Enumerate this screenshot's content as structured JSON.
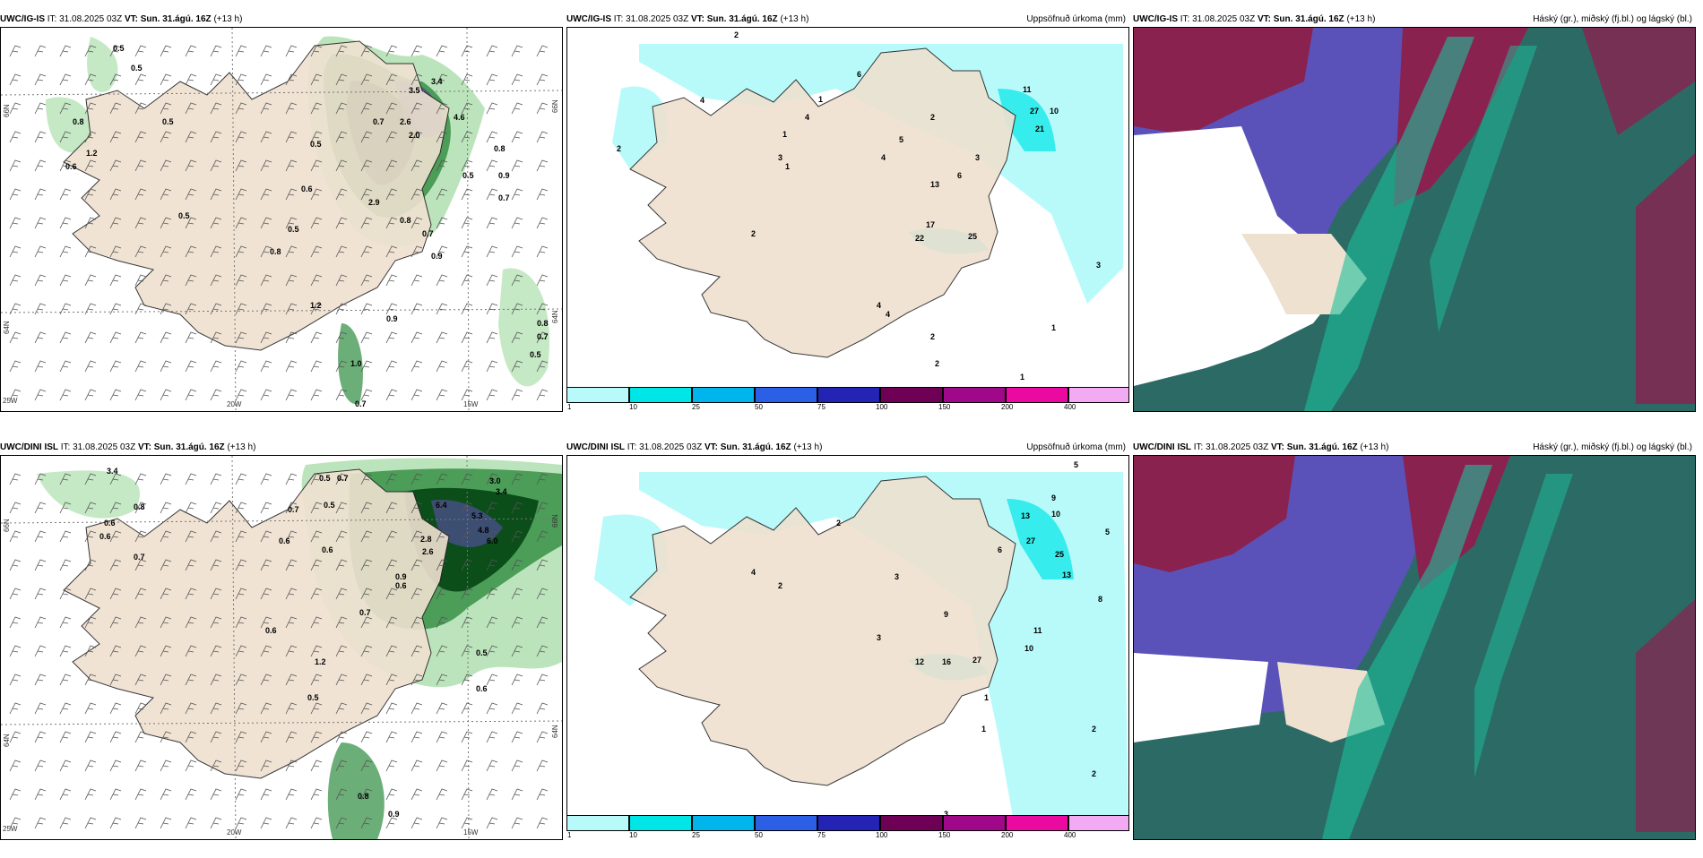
{
  "rows": [
    {
      "model": "UWC/IG-IS",
      "it_label": "IT: 31.08.2025 03Z",
      "vt_label": "VT:",
      "vt_value": "Sun. 31.ágú. 16Z",
      "lead": "(+13 h)",
      "precip_title": "Uppsöfnuð úrkoma (mm)",
      "cloud_title": "Háský (gr.), miðský (fj.bl.) og lágský (bl.)",
      "wind_values": [
        "0.5",
        "0.5",
        "0.8",
        "0.6",
        "1.2",
        "0.5",
        "0.5",
        "0.8",
        "0.6",
        "0.5",
        "0.5",
        "1.2",
        "1.0",
        "0.7",
        "0.7",
        "0.9",
        "3.5",
        "3.4",
        "4.6",
        "2.6",
        "2.0",
        "2.9",
        "0.8",
        "0.7",
        "0.9",
        "0.5",
        "0.8",
        "0.9",
        "0.7",
        "0.8",
        "0.5",
        "0.7"
      ],
      "precip_values": [
        "2",
        "4",
        "1",
        "6",
        "3",
        "4",
        "2",
        "2",
        "1",
        "4",
        "1",
        "5",
        "2",
        "3",
        "6",
        "13",
        "17",
        "22",
        "25",
        "21",
        "27",
        "11",
        "10",
        "4",
        "3",
        "1",
        "2",
        "2",
        "1",
        "4"
      ],
      "lat_labels": [
        "66N",
        "64N"
      ],
      "lat_labels_right": [
        "66N",
        "64N"
      ],
      "lon_labels": [
        "25W",
        "20W",
        "15W"
      ]
    },
    {
      "model": "UWC/DINI ISL",
      "it_label": "IT: 31.08.2025 03Z",
      "vt_label": "VT:",
      "vt_value": "Sun. 31.ágú. 16Z",
      "lead": "(+13 h)",
      "precip_title": "Uppsöfnuð úrkoma (mm)",
      "cloud_title": "Háský (gr.), miðský (fj.bl.) og lágský (bl.)",
      "wind_values": [
        "3.4",
        "0.6",
        "0.5",
        "0.7",
        "0.6",
        "0.8",
        "0.6",
        "0.7",
        "0.5",
        "0.7",
        "3.0",
        "3.4",
        "6.4",
        "5.3",
        "4.8",
        "6.0",
        "2.8",
        "2.6",
        "0.9",
        "0.6",
        "0.6",
        "0.5",
        "0.6",
        "0.8",
        "0.9",
        "0.5",
        "0.6",
        "1.2",
        "0.7"
      ],
      "precip_values": [
        "5",
        "9",
        "10",
        "13",
        "27",
        "25",
        "13",
        "16",
        "12",
        "27",
        "11",
        "10",
        "9",
        "3",
        "2",
        "2",
        "4",
        "3",
        "1",
        "2",
        "1",
        "2",
        "5",
        "8",
        "6",
        "3"
      ],
      "lat_labels": [
        "66N",
        "64N"
      ],
      "lat_labels_right": [
        "66N",
        "64N"
      ],
      "lon_labels": [
        "25W",
        "20W",
        "15W"
      ]
    }
  ],
  "colorbar": {
    "ticks": [
      "1",
      "10",
      "25",
      "50",
      "75",
      "100",
      "150",
      "200",
      "400"
    ],
    "colors": [
      "#b8fafa",
      "#00e6e6",
      "#00b4ec",
      "#2a5fe6",
      "#2424b4",
      "#6e0055",
      "#a0088a",
      "#ea0aa0",
      "#f2aaf2"
    ]
  }
}
